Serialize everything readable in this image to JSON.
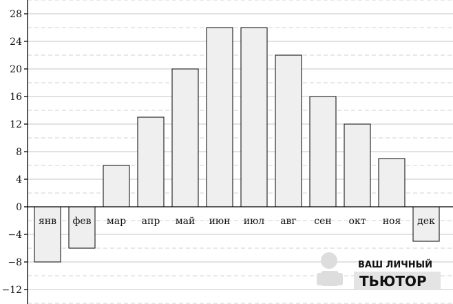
{
  "chart_data": {
    "type": "bar",
    "categories": [
      "янв",
      "фев",
      "мар",
      "апр",
      "май",
      "июн",
      "июл",
      "авг",
      "сен",
      "окт",
      "ноя",
      "дек"
    ],
    "values": [
      -8,
      -6,
      6,
      13,
      20,
      26,
      26,
      22,
      16,
      12,
      7,
      -5
    ],
    "title": "",
    "xlabel": "",
    "ylabel": "",
    "ylim": [
      -14,
      30
    ],
    "yticks": [
      28,
      24,
      20,
      16,
      12,
      8,
      4,
      0,
      -4,
      -8,
      -12
    ],
    "ytick_labels": [
      "28",
      "24",
      "20",
      "16",
      "12",
      "8",
      "4",
      "0",
      "−4",
      "−8",
      "−12"
    ],
    "grid": "major solid, minor dashed every 2",
    "bar_fill": "#efefef",
    "bar_edge": "#000000"
  },
  "watermark": {
    "line1": "ВАШ ЛИЧНЫЙ",
    "line2": "ТЬЮТОР",
    "color": "#dcdcdc"
  }
}
